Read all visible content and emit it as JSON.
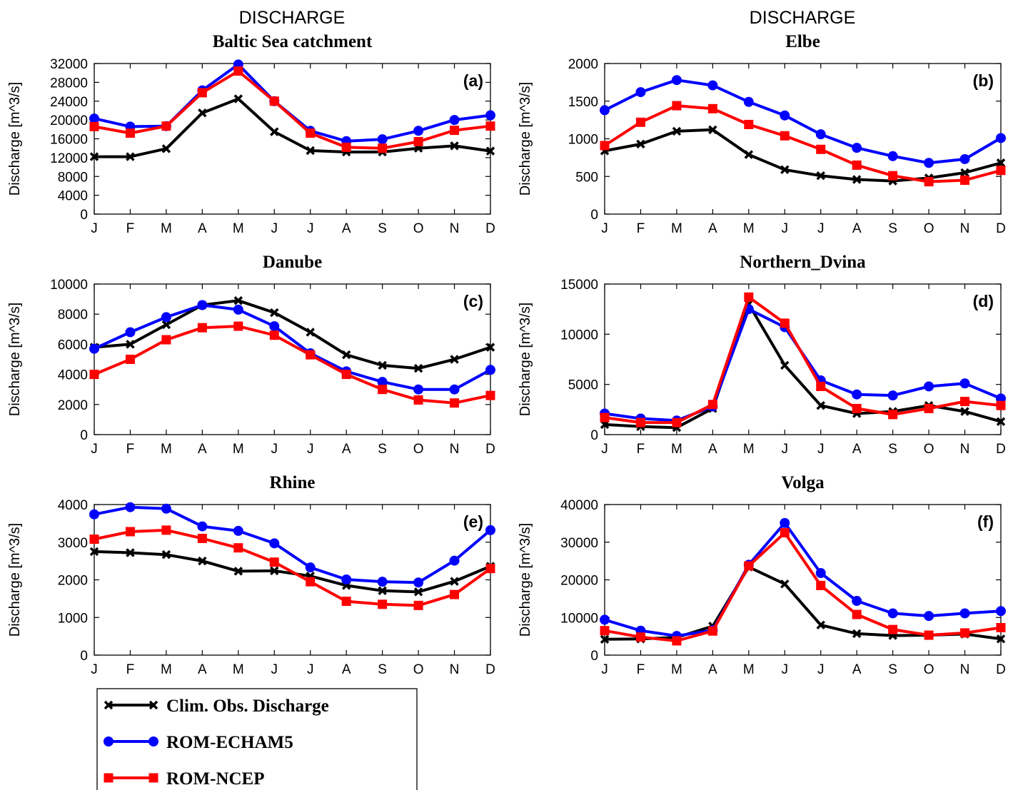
{
  "headers": [
    "DISCHARGE",
    "DISCHARGE"
  ],
  "legend": [
    {
      "name": "Clim. Obs. Discharge",
      "color": "#000000",
      "marker": "x"
    },
    {
      "name": "ROM-ECHAM5",
      "color": "#0000ff",
      "marker": "circle"
    },
    {
      "name": "ROM-NCEP",
      "color": "#ff0000",
      "marker": "square"
    }
  ],
  "chart_data": [
    {
      "type": "line",
      "panel_label": "(a)",
      "title": "Baltic Sea catchment",
      "ylabel": "Discharge [m^3/s]",
      "xlabel": "",
      "categories": [
        "J",
        "F",
        "M",
        "A",
        "M",
        "J",
        "J",
        "A",
        "S",
        "O",
        "N",
        "D"
      ],
      "ylim": [
        0,
        32000
      ],
      "yticks": [
        0,
        4000,
        8000,
        12000,
        16000,
        20000,
        24000,
        28000,
        32000
      ],
      "series": [
        {
          "name": "Clim. Obs. Discharge",
          "values": [
            12200,
            12200,
            13900,
            21500,
            24500,
            17500,
            13500,
            13200,
            13200,
            14000,
            14500,
            13400
          ]
        },
        {
          "name": "ROM-ECHAM5",
          "values": [
            20300,
            18600,
            18700,
            26300,
            31800,
            24000,
            17700,
            15500,
            15900,
            17700,
            20000,
            21000
          ]
        },
        {
          "name": "ROM-NCEP",
          "values": [
            18600,
            17200,
            18700,
            25800,
            30400,
            24000,
            17200,
            14200,
            14000,
            15400,
            17800,
            18700
          ]
        }
      ]
    },
    {
      "type": "line",
      "panel_label": "(b)",
      "title": "Elbe",
      "ylabel": "Discharge [m^3/s]",
      "xlabel": "",
      "categories": [
        "J",
        "F",
        "M",
        "A",
        "M",
        "J",
        "J",
        "A",
        "S",
        "O",
        "N",
        "D"
      ],
      "ylim": [
        0,
        2000
      ],
      "yticks": [
        0,
        500,
        1000,
        1500,
        2000
      ],
      "series": [
        {
          "name": "Clim. Obs. Discharge",
          "values": [
            840,
            930,
            1100,
            1120,
            790,
            590,
            510,
            460,
            440,
            480,
            550,
            680
          ]
        },
        {
          "name": "ROM-ECHAM5",
          "values": [
            1380,
            1620,
            1780,
            1710,
            1490,
            1310,
            1060,
            880,
            770,
            680,
            730,
            1010
          ]
        },
        {
          "name": "ROM-NCEP",
          "values": [
            910,
            1220,
            1440,
            1400,
            1190,
            1040,
            860,
            650,
            510,
            430,
            450,
            580
          ]
        }
      ]
    },
    {
      "type": "line",
      "panel_label": "(c)",
      "title": "Danube",
      "ylabel": "Discharge [m^3/s]",
      "xlabel": "",
      "categories": [
        "J",
        "F",
        "M",
        "A",
        "M",
        "J",
        "J",
        "A",
        "S",
        "O",
        "N",
        "D"
      ],
      "ylim": [
        0,
        10000
      ],
      "yticks": [
        0,
        2000,
        4000,
        6000,
        8000,
        10000
      ],
      "series": [
        {
          "name": "Clim. Obs. Discharge",
          "values": [
            5800,
            6000,
            7300,
            8600,
            8900,
            8100,
            6800,
            5300,
            4600,
            4400,
            5000,
            5800
          ]
        },
        {
          "name": "ROM-ECHAM5",
          "values": [
            5700,
            6800,
            7800,
            8600,
            8300,
            7200,
            5400,
            4200,
            3500,
            3000,
            3000,
            4300
          ]
        },
        {
          "name": "ROM-NCEP",
          "values": [
            4000,
            5000,
            6300,
            7100,
            7200,
            6600,
            5300,
            4000,
            3000,
            2300,
            2100,
            2600
          ]
        }
      ]
    },
    {
      "type": "line",
      "panel_label": "(d)",
      "title": "Northern_Dvina",
      "ylabel": "Discharge [m^3/s]",
      "xlabel": "",
      "categories": [
        "J",
        "F",
        "M",
        "A",
        "M",
        "J",
        "J",
        "A",
        "S",
        "O",
        "N",
        "D"
      ],
      "ylim": [
        0,
        15000
      ],
      "yticks": [
        0,
        5000,
        10000,
        15000
      ],
      "series": [
        {
          "name": "Clim. Obs. Discharge",
          "values": [
            1000,
            800,
            700,
            2600,
            13000,
            6900,
            2900,
            2100,
            2300,
            2900,
            2300,
            1300
          ]
        },
        {
          "name": "ROM-ECHAM5",
          "values": [
            2100,
            1600,
            1400,
            2800,
            12500,
            10700,
            5400,
            4000,
            3900,
            4800,
            5100,
            3600
          ]
        },
        {
          "name": "ROM-NCEP",
          "values": [
            1700,
            1200,
            1200,
            3000,
            13700,
            11100,
            4800,
            2600,
            2000,
            2600,
            3300,
            2900
          ]
        }
      ]
    },
    {
      "type": "line",
      "panel_label": "(e)",
      "title": "Rhine",
      "ylabel": "Discharge [m^3/s]",
      "xlabel": "",
      "categories": [
        "J",
        "F",
        "M",
        "A",
        "M",
        "J",
        "J",
        "A",
        "S",
        "O",
        "N",
        "D"
      ],
      "ylim": [
        0,
        4000
      ],
      "yticks": [
        0,
        1000,
        2000,
        3000,
        4000
      ],
      "series": [
        {
          "name": "Clim. Obs. Discharge",
          "values": [
            2750,
            2720,
            2670,
            2500,
            2230,
            2240,
            2100,
            1850,
            1710,
            1680,
            1960,
            2360
          ]
        },
        {
          "name": "ROM-ECHAM5",
          "values": [
            3740,
            3930,
            3890,
            3420,
            3300,
            2970,
            2330,
            2010,
            1950,
            1930,
            2510,
            3320
          ]
        },
        {
          "name": "ROM-NCEP",
          "values": [
            3080,
            3280,
            3320,
            3100,
            2850,
            2470,
            1950,
            1430,
            1350,
            1320,
            1610,
            2300
          ]
        }
      ]
    },
    {
      "type": "line",
      "panel_label": "(f)",
      "title": "Volga",
      "ylabel": "Discharge [m^3/s]",
      "xlabel": "",
      "categories": [
        "J",
        "F",
        "M",
        "A",
        "M",
        "J",
        "J",
        "A",
        "S",
        "O",
        "N",
        "D"
      ],
      "ylim": [
        0,
        40000
      ],
      "yticks": [
        0,
        10000,
        20000,
        30000,
        40000
      ],
      "series": [
        {
          "name": "Clim. Obs. Discharge",
          "values": [
            4200,
            4300,
            4700,
            7700,
            23400,
            18900,
            8000,
            5700,
            5200,
            5300,
            5600,
            4300
          ]
        },
        {
          "name": "ROM-ECHAM5",
          "values": [
            9400,
            6500,
            5100,
            6600,
            24000,
            35100,
            21800,
            14400,
            11100,
            10400,
            11100,
            11700
          ]
        },
        {
          "name": "ROM-NCEP",
          "values": [
            6500,
            4800,
            3800,
            6400,
            23700,
            32500,
            18500,
            10800,
            6800,
            5300,
            5900,
            7300
          ]
        }
      ]
    }
  ]
}
